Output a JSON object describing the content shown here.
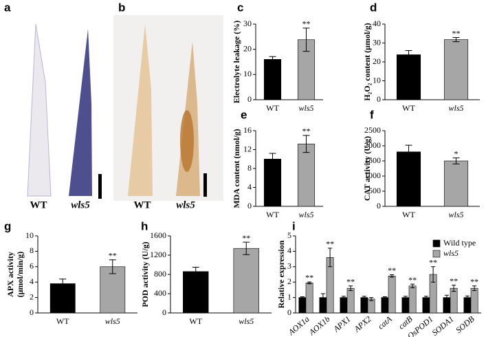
{
  "photos": [
    {
      "label": "a",
      "captions": [
        "WT",
        "wls5"
      ]
    },
    {
      "label": "b",
      "captions": [
        "WT",
        "wls5"
      ]
    }
  ],
  "chart_data": [
    {
      "type": "bar",
      "label": "c",
      "ylabel": "Electrolyte leakage (%)",
      "categories": [
        "WT",
        "wls5"
      ],
      "italic_categories": [
        false,
        true
      ],
      "series": [
        {
          "colors": [
            "#000000",
            "#a6a6a6"
          ],
          "values": [
            16,
            23.8
          ],
          "errors": [
            1.1,
            4.6
          ],
          "significance": [
            null,
            "**"
          ]
        }
      ],
      "ylim": [
        0,
        30
      ],
      "yticks": [
        0,
        10,
        20,
        30
      ]
    },
    {
      "type": "bar",
      "label": "d",
      "ylabel": "H₂O₂ content (μmol/g)",
      "categories": [
        "WT",
        "wls5"
      ],
      "italic_categories": [
        false,
        true
      ],
      "series": [
        {
          "colors": [
            "#000000",
            "#a6a6a6"
          ],
          "values": [
            23.8,
            31.8
          ],
          "errors": [
            2.2,
            1.1
          ],
          "significance": [
            null,
            "**"
          ]
        }
      ],
      "ylim": [
        0,
        40
      ],
      "yticks": [
        0,
        10,
        20,
        30,
        40
      ]
    },
    {
      "type": "bar",
      "label": "e",
      "ylabel": "MDA content (nmol/g)",
      "categories": [
        "WT",
        "wls5"
      ],
      "italic_categories": [
        false,
        true
      ],
      "series": [
        {
          "colors": [
            "#000000",
            "#a6a6a6"
          ],
          "values": [
            10,
            13.2
          ],
          "errors": [
            1.2,
            1.8
          ],
          "significance": [
            null,
            "**"
          ]
        }
      ],
      "ylim": [
        0,
        16
      ],
      "yticks": [
        0,
        4,
        8,
        12,
        16
      ]
    },
    {
      "type": "bar",
      "label": "f",
      "ylabel": "CAT activity (U/g)",
      "categories": [
        "WT",
        "wls5"
      ],
      "italic_categories": [
        false,
        true
      ],
      "series": [
        {
          "colors": [
            "#000000",
            "#a6a6a6"
          ],
          "values": [
            1800,
            1500
          ],
          "errors": [
            220,
            100
          ],
          "significance": [
            null,
            "*"
          ]
        }
      ],
      "ylim": [
        0,
        2500
      ],
      "yticks": [
        0,
        500,
        1000,
        1500,
        2000,
        2500
      ]
    },
    {
      "type": "bar",
      "label": "g",
      "ylabel": [
        "APX activity",
        "(μmol/min/g)"
      ],
      "categories": [
        "WT",
        "wls5"
      ],
      "italic_categories": [
        false,
        true
      ],
      "series": [
        {
          "colors": [
            "#000000",
            "#a6a6a6"
          ],
          "values": [
            3.8,
            6
          ],
          "errors": [
            0.6,
            0.9
          ],
          "significance": [
            null,
            "**"
          ]
        }
      ],
      "ylim": [
        0,
        10
      ],
      "yticks": [
        0,
        2,
        4,
        6,
        8,
        10
      ]
    },
    {
      "type": "bar",
      "label": "h",
      "ylabel": "POD activity (U/g)",
      "categories": [
        "WT",
        "wls5"
      ],
      "italic_categories": [
        false,
        true
      ],
      "series": [
        {
          "colors": [
            "#000000",
            "#a6a6a6"
          ],
          "values": [
            860,
            1340
          ],
          "errors": [
            90,
            130
          ],
          "significance": [
            null,
            "**"
          ]
        }
      ],
      "ylim": [
        0,
        1600
      ],
      "yticks": [
        0,
        400,
        800,
        1200,
        1600
      ]
    },
    {
      "type": "bar",
      "label": "i",
      "ylabel": "Relative expression",
      "categories": [
        "AOX1a",
        "AOX1b",
        "APX1",
        "APX2",
        "catA",
        "catB",
        "OsPOD1",
        "SODA1",
        "SODB"
      ],
      "italic_categories": [
        true,
        true,
        true,
        true,
        true,
        true,
        true,
        true,
        true
      ],
      "series": [
        {
          "name": "Wild type",
          "color": "#000000",
          "values": [
            1,
            1,
            1,
            1,
            1,
            1,
            1,
            1,
            1
          ],
          "errors": [
            0.05,
            0.25,
            0.08,
            0.08,
            0.05,
            0.08,
            0.08,
            0.15,
            0.1
          ],
          "significance": [
            null,
            null,
            null,
            null,
            null,
            null,
            null,
            null,
            null
          ]
        },
        {
          "name": "wls5",
          "color": "#a6a6a6",
          "values": [
            1.95,
            3.6,
            1.6,
            0.9,
            2.4,
            1.75,
            2.5,
            1.6,
            1.6
          ],
          "errors": [
            0.06,
            0.6,
            0.15,
            0.1,
            0.08,
            0.12,
            0.5,
            0.2,
            0.15
          ],
          "significance": [
            "**",
            "**",
            "**",
            null,
            "**",
            "**",
            "**",
            "**",
            "**"
          ]
        }
      ],
      "ylim": [
        0,
        5
      ],
      "yticks": [
        0,
        1,
        2,
        3,
        4,
        5
      ],
      "legend": "upper right"
    }
  ]
}
